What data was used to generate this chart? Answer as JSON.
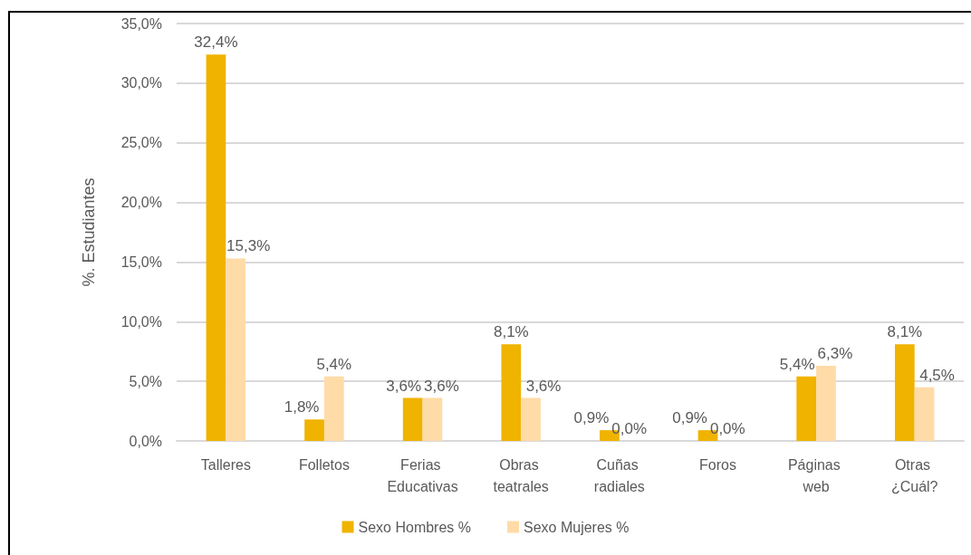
{
  "chart_data": {
    "type": "bar",
    "ylabel": "%. Estudiantes",
    "categories": [
      "Talleres",
      "Folletos",
      "Ferias Educativas",
      "Obras teatrales",
      "Cuñas radiales",
      "Foros",
      "Páginas web",
      "Otras ¿Cuál?"
    ],
    "series": [
      {
        "name": "Sexo Hombres %",
        "color": "#f0b300",
        "values": [
          32.4,
          1.8,
          3.6,
          8.1,
          0.9,
          0.9,
          5.4,
          8.1
        ],
        "value_labels": [
          "32,4%",
          "1,8%",
          "3,6%",
          "8,1%",
          "0,9%",
          "0,9%",
          "5,4%",
          "8,1%"
        ]
      },
      {
        "name": "Sexo Mujeres %",
        "color": "#ffdba8",
        "values": [
          15.3,
          5.4,
          3.6,
          3.6,
          0.0,
          0.0,
          6.3,
          4.5
        ],
        "value_labels": [
          "15,3%",
          "5,4%",
          "3,6%",
          "3,6%",
          "0,0%",
          "0,0%",
          "6,3%",
          "4,5%"
        ]
      }
    ],
    "ylim": [
      0,
      35
    ],
    "yticks": [
      {
        "value": 0,
        "label": "0,0%"
      },
      {
        "value": 5,
        "label": "5,0%"
      },
      {
        "value": 10,
        "label": "10,0%"
      },
      {
        "value": 15,
        "label": "15,0%"
      },
      {
        "value": 20,
        "label": "20,0%"
      },
      {
        "value": 25,
        "label": "25,0%"
      },
      {
        "value": 30,
        "label": "30,0%"
      },
      {
        "value": 35,
        "label": "35,0%"
      }
    ],
    "grid": "y",
    "legend": "bottom"
  }
}
